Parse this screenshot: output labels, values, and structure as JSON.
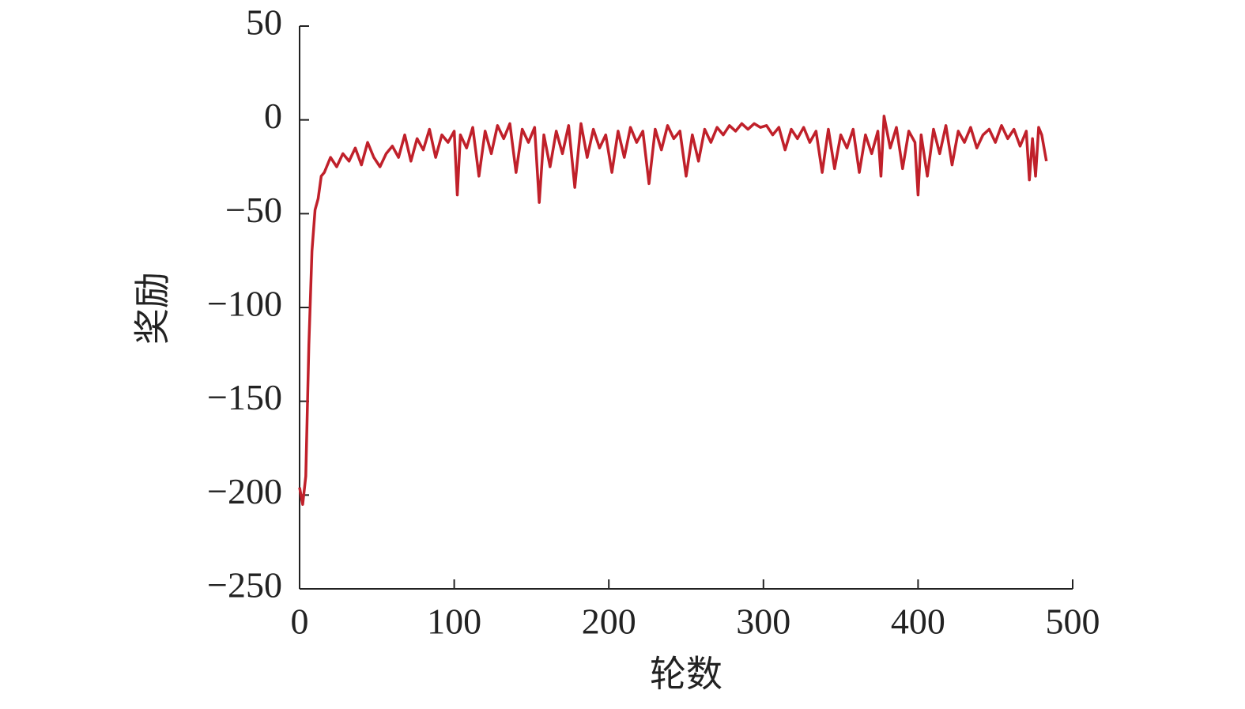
{
  "chart_data": {
    "type": "line",
    "xlabel": "轮数",
    "ylabel": "奖励",
    "xlim": [
      0,
      500
    ],
    "ylim": [
      -250,
      50
    ],
    "xticks": [
      0,
      100,
      200,
      300,
      400,
      500
    ],
    "yticks": [
      50,
      0,
      {
        "value": -50,
        "label": "−50"
      },
      {
        "value": -100,
        "label": "−100"
      },
      {
        "value": -150,
        "label": "−150"
      },
      {
        "value": -200,
        "label": "−200"
      },
      {
        "value": -250,
        "label": "−250"
      }
    ],
    "x": [
      0,
      2,
      4,
      6,
      8,
      10,
      12,
      14,
      16,
      20,
      24,
      28,
      32,
      36,
      40,
      44,
      48,
      52,
      56,
      60,
      64,
      68,
      72,
      76,
      80,
      84,
      88,
      92,
      96,
      100,
      102,
      104,
      108,
      112,
      116,
      120,
      124,
      128,
      132,
      136,
      140,
      144,
      148,
      152,
      155,
      158,
      162,
      166,
      170,
      174,
      178,
      182,
      186,
      190,
      194,
      198,
      202,
      206,
      210,
      214,
      218,
      222,
      226,
      230,
      234,
      238,
      242,
      246,
      250,
      254,
      258,
      262,
      266,
      270,
      274,
      278,
      282,
      286,
      290,
      294,
      298,
      302,
      306,
      310,
      314,
      318,
      322,
      326,
      330,
      334,
      338,
      342,
      346,
      350,
      354,
      358,
      362,
      366,
      370,
      374,
      376,
      378,
      382,
      386,
      390,
      394,
      398,
      400,
      402,
      406,
      410,
      414,
      418,
      422,
      426,
      430,
      434,
      438,
      442,
      446,
      450,
      454,
      458,
      462,
      466,
      470,
      472,
      474,
      476,
      478,
      480,
      483
    ],
    "series": [
      {
        "color": "#c0202a",
        "values": [
          -196,
          -205,
          -190,
          -120,
          -70,
          -48,
          -42,
          -30,
          -28,
          -20,
          -25,
          -18,
          -22,
          -15,
          -24,
          -12,
          -20,
          -25,
          -18,
          -14,
          -20,
          -8,
          -22,
          -10,
          -16,
          -5,
          -20,
          -8,
          -12,
          -6,
          -40,
          -8,
          -15,
          -4,
          -30,
          -6,
          -18,
          -3,
          -10,
          -2,
          -28,
          -5,
          -12,
          -4,
          -44,
          -8,
          -25,
          -6,
          -18,
          -3,
          -36,
          -2,
          -20,
          -5,
          -15,
          -8,
          -28,
          -6,
          -20,
          -4,
          -12,
          -6,
          -34,
          -5,
          -16,
          -3,
          -10,
          -6,
          -30,
          -8,
          -22,
          -5,
          -12,
          -4,
          -8,
          -3,
          -6,
          -2,
          -5,
          -2,
          -4,
          -3,
          -8,
          -4,
          -16,
          -5,
          -10,
          -4,
          -12,
          -6,
          -28,
          -5,
          -26,
          -8,
          -15,
          -5,
          -28,
          -8,
          -18,
          -6,
          -30,
          2,
          -15,
          -4,
          -26,
          -6,
          -12,
          -40,
          -8,
          -30,
          -5,
          -18,
          -3,
          -24,
          -6,
          -12,
          -4,
          -15,
          -8,
          -5,
          -12,
          -3,
          -10,
          -5,
          -14,
          -6,
          -32,
          -10,
          -30,
          -4,
          -8,
          -22
        ]
      }
    ]
  }
}
